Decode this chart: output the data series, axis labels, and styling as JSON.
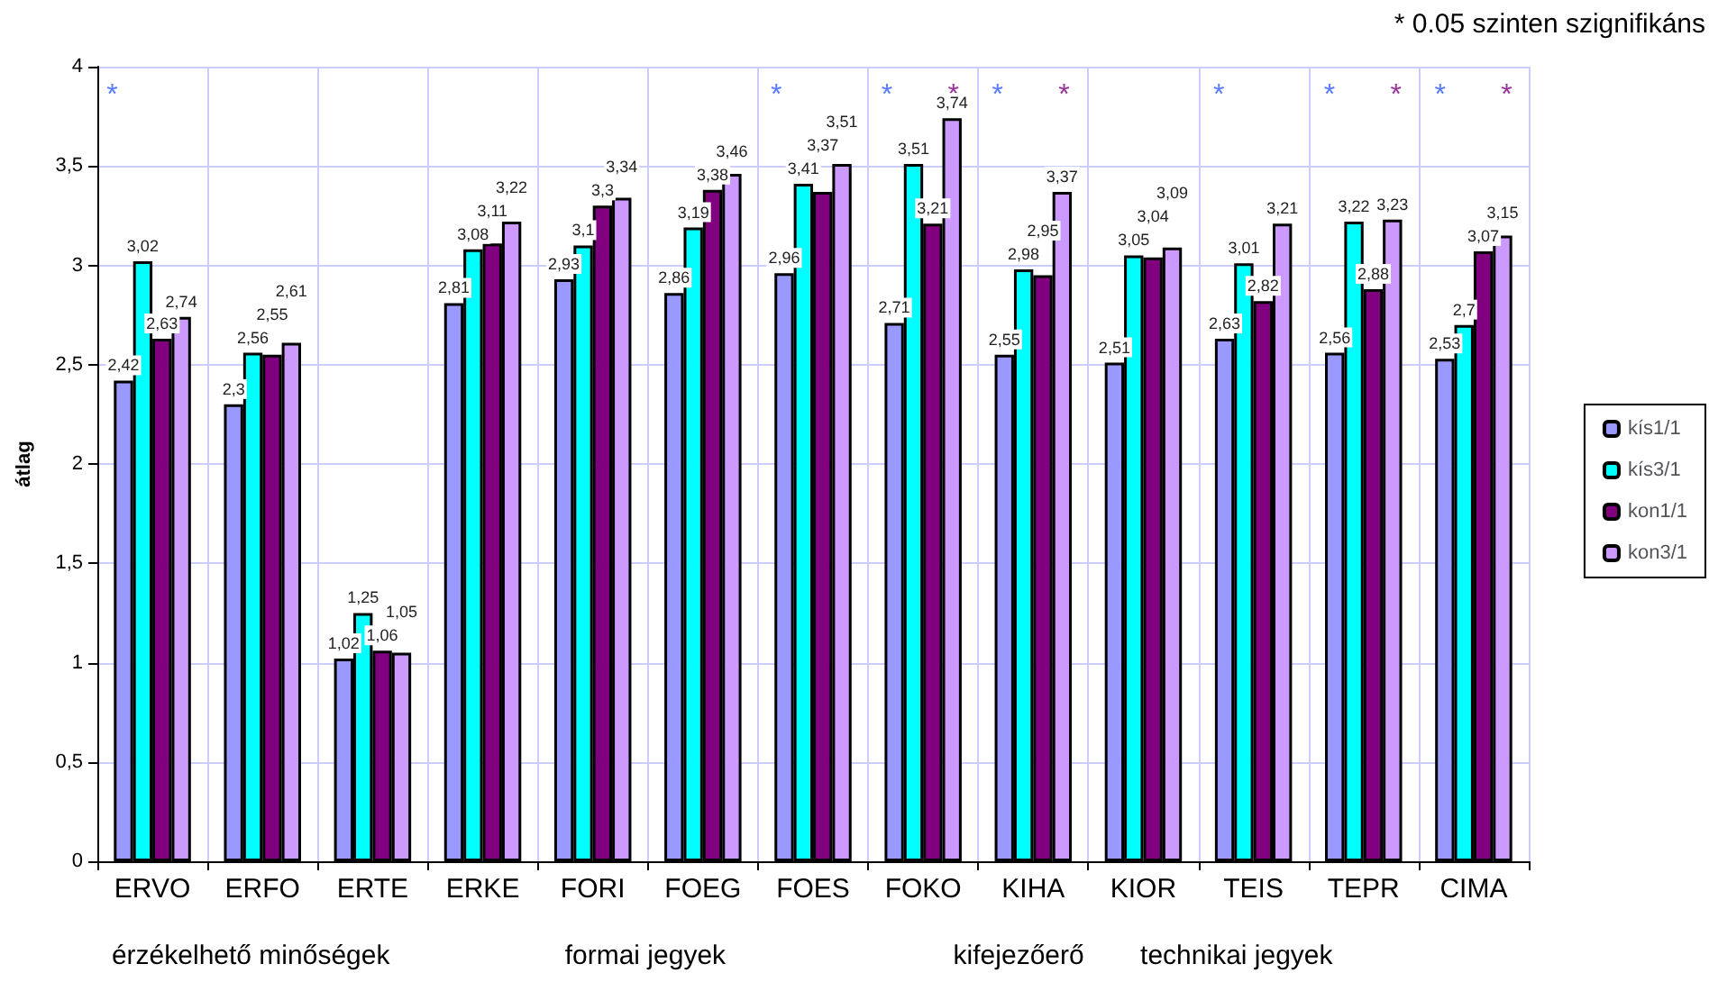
{
  "chart_data": {
    "type": "bar",
    "ylabel": "átlag",
    "categories": [
      "ERVO",
      "ERFO",
      "ERTE",
      "ERKE",
      "FORI",
      "FOEG",
      "FOES",
      "FOKO",
      "KIHA",
      "KIOR",
      "TEIS",
      "TEPR",
      "CIMA"
    ],
    "series": [
      {
        "name": "kís1/1",
        "color": "#9999ff",
        "values": [
          2.42,
          2.3,
          1.02,
          2.81,
          2.93,
          2.86,
          2.96,
          2.71,
          2.55,
          2.51,
          2.63,
          2.56,
          2.53
        ],
        "value_labels": [
          "2,42",
          "2,3",
          "1,02",
          "2,81",
          "2,93",
          "2,86",
          "2,96",
          "2,71",
          "2,55",
          "2,51",
          "2,63",
          "2,56",
          "2,53"
        ]
      },
      {
        "name": "kís3/1",
        "color": "#00ffff",
        "values": [
          3.02,
          2.56,
          1.25,
          3.08,
          3.1,
          3.19,
          3.41,
          3.51,
          2.98,
          3.05,
          3.01,
          3.22,
          2.7
        ],
        "value_labels": [
          "3,02",
          "2,56",
          "1,25",
          "3,08",
          "3,1",
          "3,19",
          "3,41",
          "3,51",
          "2,98",
          "3,05",
          "3,01",
          "3,22",
          "2,7"
        ]
      },
      {
        "name": "kon1/1",
        "color": "#800080",
        "values": [
          2.63,
          2.55,
          1.06,
          3.11,
          3.3,
          3.38,
          3.37,
          3.21,
          2.95,
          3.04,
          2.82,
          2.88,
          3.07
        ],
        "value_labels": [
          "2,63",
          "2,55",
          "1,06",
          "3,11",
          "3,3",
          "3,38",
          "3,37",
          "3,21",
          "2,95",
          "3,04",
          "2,82",
          "2,88",
          "3,07"
        ]
      },
      {
        "name": "kon3/1",
        "color": "#cc99ff",
        "values": [
          2.74,
          2.61,
          1.05,
          3.22,
          3.34,
          3.46,
          3.51,
          3.74,
          3.37,
          3.09,
          3.21,
          3.23,
          3.15
        ],
        "value_labels": [
          "2,74",
          "2,61",
          "1,05",
          "3,22",
          "3,34",
          "3,46",
          "3,51",
          "3,74",
          "3,37",
          "3,09",
          "3,21",
          "3,23",
          "3,15"
        ]
      }
    ],
    "ylim": [
      0,
      4
    ],
    "yticks": [
      0,
      {
        "value": 0.5,
        "label": "0,5"
      },
      1,
      {
        "value": 1.5,
        "label": "1,5"
      },
      2,
      {
        "value": 2.5,
        "label": "2,5"
      },
      3,
      {
        "value": 3.5,
        "label": "3,5"
      },
      4
    ],
    "grid": true,
    "legend": "right",
    "annotations": [
      "* 0.05 szinten szignifikáns",
      "érzékelhető minőségek",
      "formai jegyek",
      "kifejezőerő",
      "technikai jegyek",
      "*",
      "*",
      "*",
      "*",
      "*",
      "*",
      "*",
      "*",
      "*",
      "*",
      "*"
    ]
  }
}
